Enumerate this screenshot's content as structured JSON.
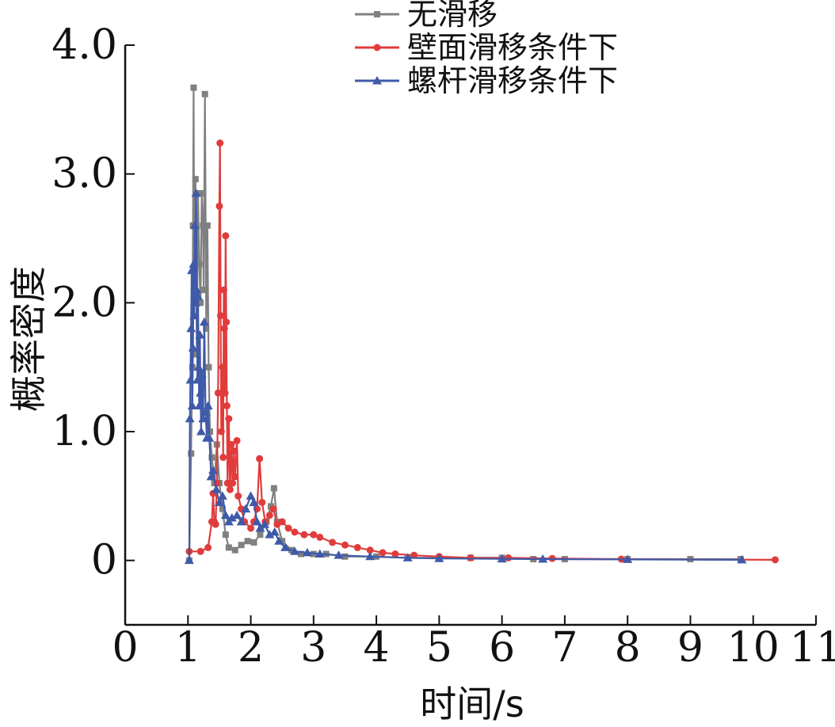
{
  "chart_data": {
    "type": "line",
    "xlabel": "时间/s",
    "ylabel": "概率密度",
    "xlim": [
      0,
      11
    ],
    "ylim": [
      -0.5,
      4.0
    ],
    "x_ticks": [
      0,
      1,
      2,
      3,
      4,
      5,
      6,
      7,
      8,
      9,
      10,
      11
    ],
    "x_tick_labels": [
      "0",
      "1",
      "2",
      "3",
      "4",
      "5",
      "6",
      "7",
      "8",
      "9",
      "10",
      "11"
    ],
    "y_ticks": [
      0,
      1,
      2,
      3,
      4
    ],
    "y_tick_labels": [
      "0",
      "1.0",
      "2.0",
      "3.0",
      "4.0"
    ],
    "grid": false,
    "legend_position": "top-center",
    "series": [
      {
        "name": "无滑移",
        "color": "#808080",
        "marker": "square",
        "points": [
          [
            1.02,
            0.0
          ],
          [
            1.05,
            0.83
          ],
          [
            1.07,
            1.5
          ],
          [
            1.08,
            2.6
          ],
          [
            1.09,
            3.67
          ],
          [
            1.1,
            2.1
          ],
          [
            1.12,
            2.96
          ],
          [
            1.14,
            1.6
          ],
          [
            1.16,
            2.85
          ],
          [
            1.18,
            2.3
          ],
          [
            1.2,
            2.0
          ],
          [
            1.22,
            2.85
          ],
          [
            1.24,
            2.6
          ],
          [
            1.25,
            2.1
          ],
          [
            1.27,
            3.62
          ],
          [
            1.29,
            1.8
          ],
          [
            1.31,
            2.6
          ],
          [
            1.33,
            1.5
          ],
          [
            1.35,
            1.0
          ],
          [
            1.38,
            0.8
          ],
          [
            1.42,
            0.6
          ],
          [
            1.46,
            0.9
          ],
          [
            1.5,
            0.6
          ],
          [
            1.55,
            0.4
          ],
          [
            1.6,
            0.2
          ],
          [
            1.65,
            0.1
          ],
          [
            1.75,
            0.08
          ],
          [
            1.85,
            0.12
          ],
          [
            1.95,
            0.15
          ],
          [
            2.05,
            0.14
          ],
          [
            2.15,
            0.2
          ],
          [
            2.25,
            0.3
          ],
          [
            2.32,
            0.42
          ],
          [
            2.37,
            0.56
          ],
          [
            2.42,
            0.3
          ],
          [
            2.5,
            0.15
          ],
          [
            2.65,
            0.08
          ],
          [
            2.8,
            0.05
          ],
          [
            3.0,
            0.05
          ],
          [
            3.2,
            0.05
          ],
          [
            3.5,
            0.03
          ],
          [
            4.0,
            0.03
          ],
          [
            4.5,
            0.02
          ],
          [
            5.0,
            0.02
          ],
          [
            5.5,
            0.02
          ],
          [
            6.0,
            0.02
          ],
          [
            6.5,
            0.01
          ],
          [
            7.0,
            0.01
          ],
          [
            8.0,
            0.01
          ],
          [
            9.0,
            0.01
          ],
          [
            9.8,
            0.01
          ]
        ]
      },
      {
        "name": "壁面滑移条件下",
        "color": "#e03c3c",
        "marker": "circle",
        "points": [
          [
            1.02,
            0.07
          ],
          [
            1.2,
            0.07
          ],
          [
            1.32,
            0.1
          ],
          [
            1.38,
            0.3
          ],
          [
            1.4,
            0.52
          ],
          [
            1.42,
            0.3
          ],
          [
            1.44,
            0.28
          ],
          [
            1.46,
            0.6
          ],
          [
            1.48,
            1.3
          ],
          [
            1.5,
            2.75
          ],
          [
            1.51,
            3.24
          ],
          [
            1.52,
            1.9
          ],
          [
            1.53,
            1.0
          ],
          [
            1.55,
            1.5
          ],
          [
            1.56,
            0.8
          ],
          [
            1.57,
            2.1
          ],
          [
            1.58,
            1.8
          ],
          [
            1.59,
            1.3
          ],
          [
            1.6,
            2.52
          ],
          [
            1.61,
            1.85
          ],
          [
            1.62,
            1.2
          ],
          [
            1.63,
            0.6
          ],
          [
            1.65,
            1.1
          ],
          [
            1.67,
            0.55
          ],
          [
            1.69,
            0.9
          ],
          [
            1.71,
            0.6
          ],
          [
            1.73,
            0.85
          ],
          [
            1.75,
            0.65
          ],
          [
            1.78,
            0.93
          ],
          [
            1.8,
            0.5
          ],
          [
            1.85,
            0.4
          ],
          [
            1.9,
            0.3
          ],
          [
            2.0,
            0.25
          ],
          [
            2.05,
            0.3
          ],
          [
            2.1,
            0.4
          ],
          [
            2.14,
            0.79
          ],
          [
            2.18,
            0.45
          ],
          [
            2.23,
            0.3
          ],
          [
            2.3,
            0.35
          ],
          [
            2.36,
            0.4
          ],
          [
            2.42,
            0.28
          ],
          [
            2.5,
            0.3
          ],
          [
            2.6,
            0.25
          ],
          [
            2.7,
            0.22
          ],
          [
            2.85,
            0.2
          ],
          [
            3.0,
            0.2
          ],
          [
            3.1,
            0.18
          ],
          [
            3.3,
            0.14
          ],
          [
            3.5,
            0.12
          ],
          [
            3.7,
            0.1
          ],
          [
            3.9,
            0.08
          ],
          [
            4.1,
            0.06
          ],
          [
            4.3,
            0.05
          ],
          [
            4.6,
            0.04
          ],
          [
            5.0,
            0.03
          ],
          [
            5.5,
            0.02
          ],
          [
            6.1,
            0.02
          ],
          [
            6.8,
            0.015
          ],
          [
            7.9,
            0.01
          ],
          [
            10.35,
            0.005
          ]
        ]
      },
      {
        "name": "螺杆滑移条件下",
        "color": "#3f5aa8",
        "marker": "triangle",
        "points": [
          [
            1.02,
            0.0
          ],
          [
            1.03,
            1.1
          ],
          [
            1.04,
            1.4
          ],
          [
            1.05,
            1.8
          ],
          [
            1.06,
            2.25
          ],
          [
            1.07,
            1.2
          ],
          [
            1.08,
            1.65
          ],
          [
            1.09,
            2.3
          ],
          [
            1.1,
            1.9
          ],
          [
            1.11,
            2.6
          ],
          [
            1.12,
            2.0
          ],
          [
            1.13,
            2.85
          ],
          [
            1.14,
            2.1
          ],
          [
            1.15,
            1.4
          ],
          [
            1.16,
            2.05
          ],
          [
            1.17,
            1.5
          ],
          [
            1.18,
            1.2
          ],
          [
            1.19,
            1.75
          ],
          [
            1.2,
            1.3
          ],
          [
            1.21,
            1.0
          ],
          [
            1.22,
            1.45
          ],
          [
            1.24,
            1.1
          ],
          [
            1.26,
            1.85
          ],
          [
            1.28,
            1.15
          ],
          [
            1.3,
            0.95
          ],
          [
            1.32,
            1.2
          ],
          [
            1.34,
            0.95
          ],
          [
            1.37,
            0.65
          ],
          [
            1.4,
            0.7
          ],
          [
            1.45,
            0.55
          ],
          [
            1.5,
            0.45
          ],
          [
            1.55,
            0.5
          ],
          [
            1.6,
            0.35
          ],
          [
            1.65,
            0.3
          ],
          [
            1.7,
            0.33
          ],
          [
            1.78,
            0.35
          ],
          [
            1.85,
            0.3
          ],
          [
            1.92,
            0.4
          ],
          [
            2.0,
            0.5
          ],
          [
            2.05,
            0.45
          ],
          [
            2.1,
            0.3
          ],
          [
            2.15,
            0.25
          ],
          [
            2.22,
            0.28
          ],
          [
            2.3,
            0.2
          ],
          [
            2.38,
            0.22
          ],
          [
            2.45,
            0.15
          ],
          [
            2.55,
            0.1
          ],
          [
            2.7,
            0.07
          ],
          [
            2.9,
            0.06
          ],
          [
            3.1,
            0.05
          ],
          [
            3.4,
            0.04
          ],
          [
            3.9,
            0.03
          ],
          [
            4.5,
            0.02
          ],
          [
            5.0,
            0.015
          ],
          [
            6.0,
            0.012
          ],
          [
            6.65,
            0.01
          ],
          [
            8.0,
            0.008
          ],
          [
            9.82,
            0.005
          ]
        ]
      }
    ]
  }
}
